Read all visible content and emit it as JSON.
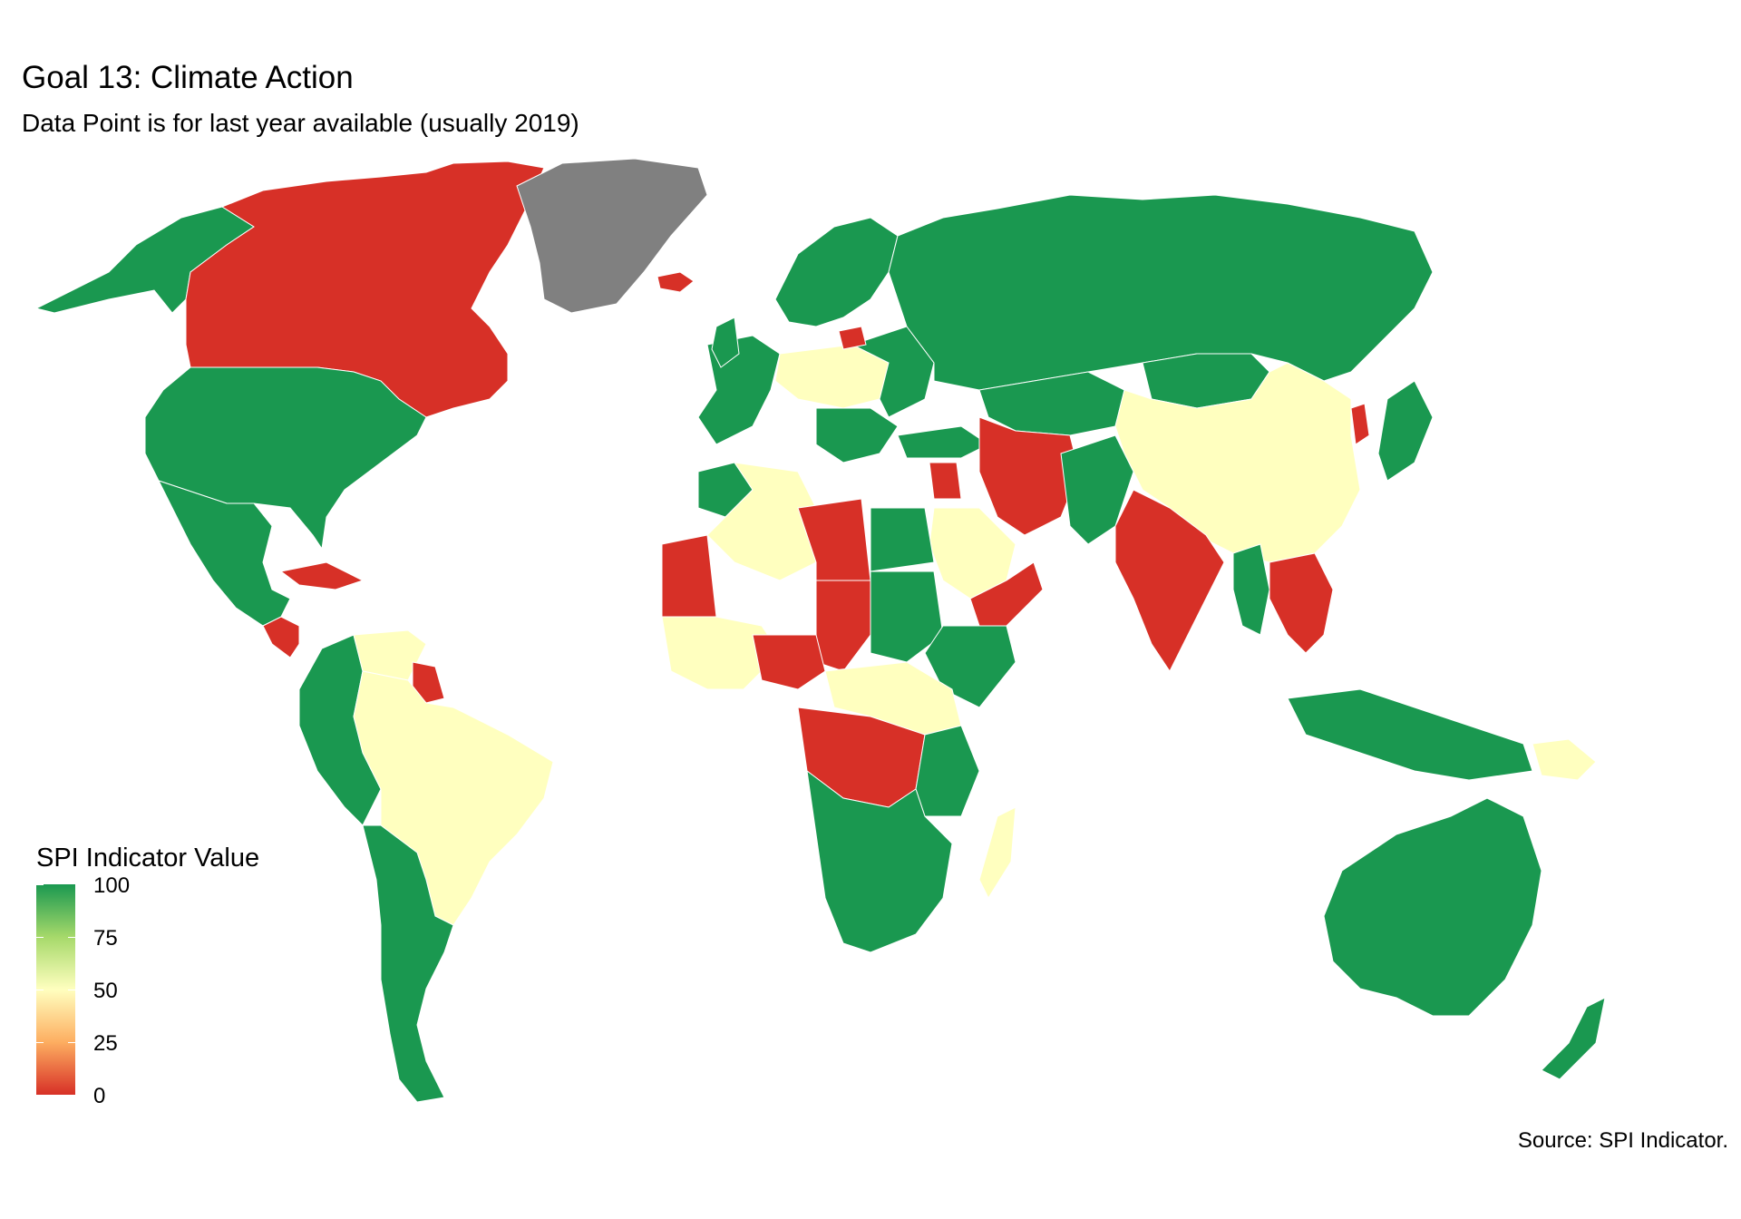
{
  "header": {
    "title": "Goal 13: Climate Action",
    "subtitle": "Data Point is for last year available (usually 2019)"
  },
  "legend": {
    "title": "SPI Indicator Value",
    "ticks": [
      "100",
      "75",
      "50",
      "25",
      "0"
    ]
  },
  "caption": "Source: SPI Indicator.",
  "colors": {
    "high": "#1a9850",
    "mid": "#ffffbf",
    "low": "#d73027",
    "no_data": "#808080",
    "missing": "#c8c8c8"
  },
  "chart_data": {
    "type": "choropleth",
    "value_range": [
      0,
      100
    ],
    "regions": [
      {
        "name": "Canada",
        "value": 0
      },
      {
        "name": "United States",
        "value": 100
      },
      {
        "name": "Mexico",
        "value": 100
      },
      {
        "name": "Greenland",
        "value": null
      },
      {
        "name": "Iceland",
        "value": 0
      },
      {
        "name": "Cuba",
        "value": 0
      },
      {
        "name": "Brazil",
        "value": 50
      },
      {
        "name": "Argentina",
        "value": 100
      },
      {
        "name": "Chile",
        "value": 100
      },
      {
        "name": "Peru",
        "value": 100
      },
      {
        "name": "Russia",
        "value": 100
      },
      {
        "name": "China",
        "value": 50
      },
      {
        "name": "India",
        "value": 0
      },
      {
        "name": "Iran",
        "value": 0
      },
      {
        "name": "Saudi Arabia",
        "value": 50
      },
      {
        "name": "Libya",
        "value": 0
      },
      {
        "name": "Egypt",
        "value": 100
      },
      {
        "name": "Algeria",
        "value": 50
      },
      {
        "name": "Mauritania",
        "value": 0
      },
      {
        "name": "Nigeria",
        "value": 0
      },
      {
        "name": "Chad",
        "value": 0
      },
      {
        "name": "DR Congo",
        "value": 0
      },
      {
        "name": "Angola",
        "value": 100
      },
      {
        "name": "South Africa",
        "value": 100
      },
      {
        "name": "Madagascar",
        "value": 50
      },
      {
        "name": "Australia",
        "value": 100
      },
      {
        "name": "New Zealand",
        "value": 100
      },
      {
        "name": "Indonesia",
        "value": 100
      },
      {
        "name": "Papua New Guinea",
        "value": 50
      },
      {
        "name": "Kazakhstan",
        "value": 100
      },
      {
        "name": "Mongolia",
        "value": 100
      },
      {
        "name": "Japan",
        "value": 100
      },
      {
        "name": "Thailand",
        "value": 0
      },
      {
        "name": "Vietnam",
        "value": 0
      },
      {
        "name": "Poland",
        "value": 50
      },
      {
        "name": "Norway",
        "value": 100
      },
      {
        "name": "Sweden",
        "value": 100
      },
      {
        "name": "Spain",
        "value": 100
      },
      {
        "name": "Ethiopia",
        "value": 100
      },
      {
        "name": "Kenya",
        "value": 50
      }
    ]
  }
}
